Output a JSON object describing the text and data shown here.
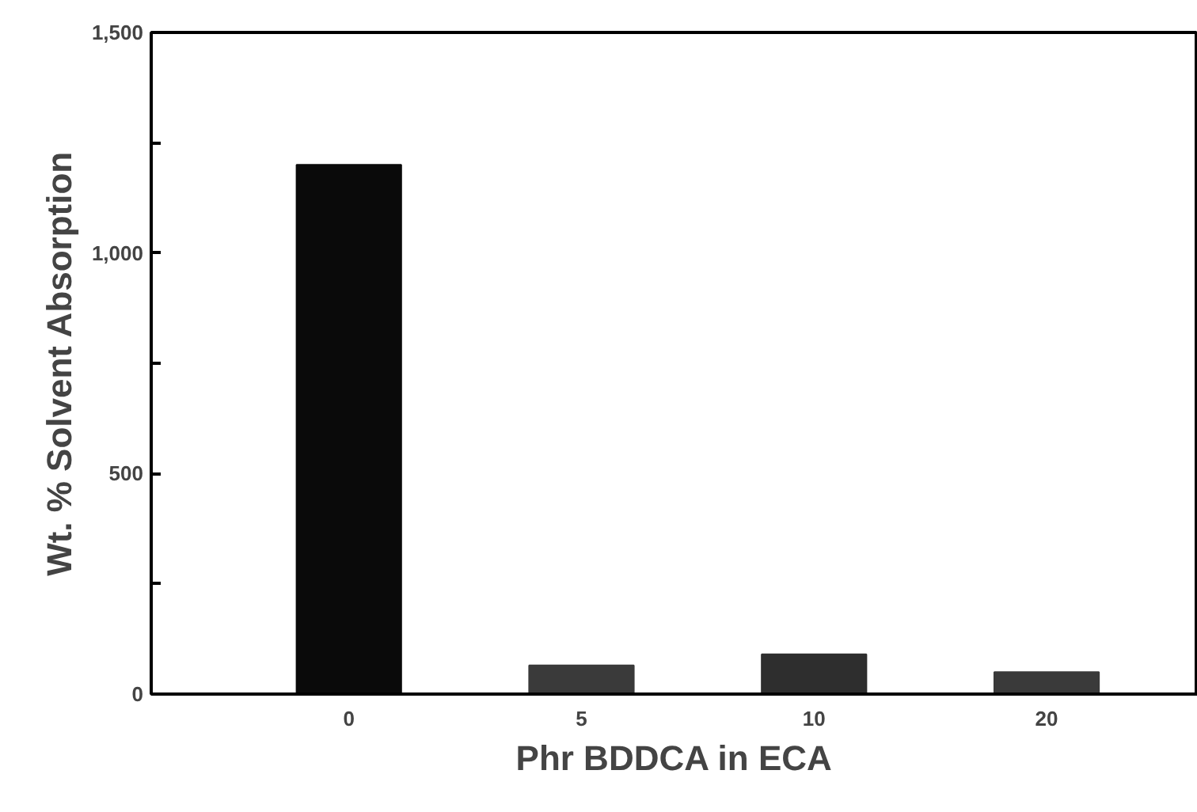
{
  "chart_data": {
    "type": "bar",
    "xlabel": "Phr BDDCA in ECA",
    "ylabel": "Wt. % Solvent Absorption",
    "categories": [
      "0",
      "5",
      "10",
      "20"
    ],
    "values": [
      1200,
      65,
      90,
      50
    ],
    "colors": [
      "#0a0a0a",
      "#3a3a3a",
      "#2e2e2e",
      "#3a3a3a"
    ],
    "ylim": [
      0,
      1500
    ],
    "yticks": [
      0,
      {
        "value": 250,
        "label": null
      },
      500,
      {
        "value": 750,
        "label": null
      },
      {
        "value": 1000,
        "label": "1,000"
      },
      {
        "value": 1250,
        "label": null
      },
      {
        "value": 1500,
        "label": "1,500"
      }
    ],
    "grid": false
  }
}
